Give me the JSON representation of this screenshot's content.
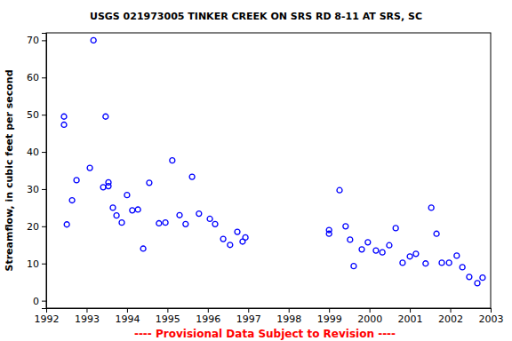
{
  "chart_data": {
    "type": "scatter",
    "title": "USGS 021973005 TINKER CREEK ON SRS RD 8-11 AT SRS, SC",
    "y_label": "Streamflow, in cubic feet per second",
    "annotation": "---- Provisional Data Subject to Revision ----",
    "x": [
      1992.44,
      1992.44,
      1992.51,
      1992.64,
      1992.75,
      1993.08,
      1993.17,
      1993.41,
      1993.47,
      1993.54,
      1993.54,
      1993.65,
      1993.74,
      1993.87,
      1994.0,
      1994.13,
      1994.27,
      1994.4,
      1994.55,
      1994.79,
      1994.95,
      1995.12,
      1995.3,
      1995.45,
      1995.61,
      1995.78,
      1996.05,
      1996.18,
      1996.38,
      1996.55,
      1996.73,
      1996.86,
      1996.93,
      1999.0,
      1999.0,
      1999.26,
      1999.41,
      1999.52,
      1999.61,
      1999.81,
      1999.96,
      2000.16,
      2000.32,
      2000.49,
      2000.65,
      2000.82,
      2001.0,
      2001.15,
      2001.39,
      2001.53,
      2001.66,
      2001.79,
      2001.97,
      2002.16,
      2002.3,
      2002.47,
      2002.67,
      2002.8
    ],
    "values": [
      49.5,
      47.3,
      20.5,
      27,
      32.4,
      35.7,
      70,
      30.5,
      49.5,
      31.8,
      30.8,
      25,
      22.9,
      21,
      28.4,
      24.3,
      24.5,
      14,
      31.7,
      20.8,
      21,
      37.7,
      23,
      20.6,
      33.3,
      23.4,
      22,
      20.6,
      16.6,
      15,
      18.5,
      15.9,
      17,
      19,
      18,
      29.7,
      20,
      16.4,
      9.3,
      13.8,
      15.7,
      13.5,
      13,
      14.9,
      19.5,
      10.2,
      11.9,
      12.6,
      10,
      25,
      18,
      10.2,
      10.2,
      12.1,
      9,
      6.4,
      4.7,
      6.2
    ],
    "color": "#0000ff",
    "marker": "circle",
    "xlim": [
      1992,
      2003
    ],
    "xticks": [
      1992,
      1993,
      1994,
      1995,
      1996,
      1997,
      1998,
      1999,
      2000,
      2001,
      2002,
      2003
    ],
    "ylim": [
      -2,
      72
    ],
    "yticks": [
      0,
      10,
      20,
      30,
      40,
      50,
      60,
      70
    ],
    "grid": false
  }
}
